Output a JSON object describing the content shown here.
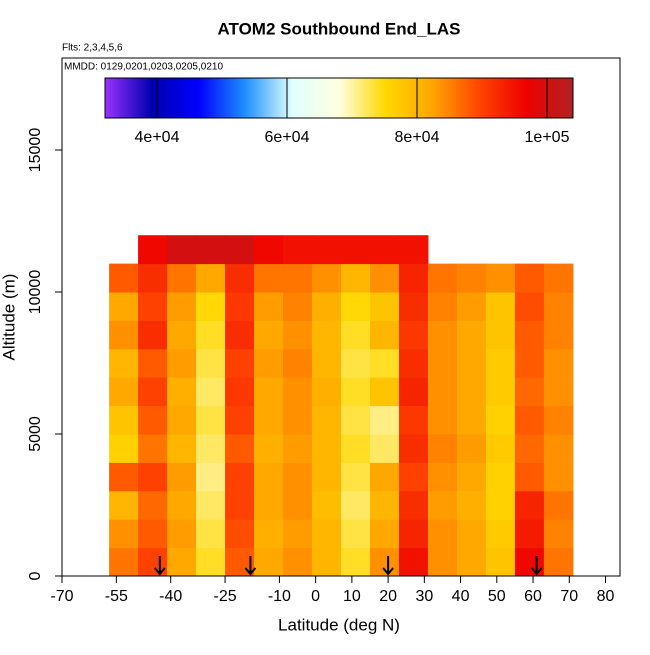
{
  "chart_data": {
    "type": "heatmap",
    "title": "ATOM2 Southbound End_LAS",
    "subtitle": "Flts: 2,3,4,5,6",
    "annotation": "MMDD: 0129,0201,0203,0205,0210",
    "x_label": "Latitude (deg N)",
    "y_label": "Altitude (m)",
    "xlim": [
      -70,
      84
    ],
    "ylim": [
      0,
      18240
    ],
    "xticks": [
      -70,
      -55,
      -40,
      -25,
      -10,
      0,
      10,
      20,
      30,
      40,
      50,
      60,
      70,
      80
    ],
    "yticks": [
      0,
      5000,
      10000,
      15000
    ],
    "x_edges": [
      -57,
      -49,
      -41,
      -33,
      -25,
      -17,
      -9,
      -1,
      7,
      15,
      23,
      31,
      39,
      47,
      55,
      63,
      71
    ],
    "y_edges": [
      0,
      1000,
      2000,
      3000,
      4000,
      5000,
      6000,
      7000,
      8000,
      9000,
      10000,
      11000,
      12000
    ],
    "z": [
      [
        86000,
        90000,
        82000,
        74000,
        88000,
        82000,
        84000,
        80000,
        74000,
        84000,
        95000,
        84000,
        82000,
        78000,
        96000,
        86000
      ],
      [
        84000,
        88000,
        83000,
        73000,
        89000,
        81000,
        83000,
        80000,
        73000,
        82000,
        93000,
        84000,
        82000,
        77000,
        94000,
        85000
      ],
      [
        80000,
        87000,
        82000,
        72000,
        90000,
        82000,
        84000,
        79000,
        72000,
        80000,
        92000,
        83000,
        81000,
        76000,
        93000,
        86000
      ],
      [
        88000,
        90000,
        83000,
        71000,
        90000,
        82000,
        84000,
        80000,
        73000,
        82000,
        90000,
        84000,
        82000,
        76000,
        88000,
        84000
      ],
      [
        76000,
        86000,
        80000,
        72000,
        88000,
        81000,
        83000,
        80000,
        74000,
        72000,
        92000,
        85000,
        83000,
        77000,
        87000,
        84000
      ],
      [
        78000,
        88000,
        82000,
        73000,
        90000,
        82000,
        84000,
        80000,
        73000,
        71000,
        91000,
        84000,
        82000,
        76000,
        88000,
        85000
      ],
      [
        82000,
        90000,
        81000,
        72000,
        91000,
        82000,
        84000,
        81000,
        74000,
        78000,
        93000,
        84000,
        82000,
        77000,
        87000,
        84000
      ],
      [
        80000,
        88000,
        83000,
        73000,
        90000,
        83000,
        85000,
        80000,
        73000,
        74000,
        92000,
        84000,
        82000,
        77000,
        88000,
        84000
      ],
      [
        84000,
        92000,
        82000,
        74000,
        92000,
        82000,
        84000,
        80000,
        74000,
        80000,
        91000,
        84000,
        82000,
        78000,
        88000,
        85000
      ],
      [
        82000,
        90000,
        83000,
        75000,
        91000,
        83000,
        85000,
        81000,
        75000,
        78000,
        92000,
        85000,
        83000,
        78000,
        89000,
        85000
      ],
      [
        88000,
        92000,
        86000,
        82000,
        92000,
        86000,
        86000,
        84000,
        80000,
        84000,
        93000,
        86000,
        85000,
        84000,
        88000,
        86000
      ],
      [
        null,
        96000,
        100000,
        100000,
        100000,
        96000,
        95000,
        95000,
        95000,
        95000,
        95000,
        null,
        null,
        null,
        null,
        null
      ]
    ],
    "clim": [
      32000,
      104000
    ],
    "colors": [
      "#9932ff",
      "#0000b0",
      "#0000ff",
      "#1e90ff",
      "#e0ffff",
      "#ffffe0",
      "#ffd700",
      "#ffa500",
      "#ff4500",
      "#ee0000",
      "#b22222"
    ],
    "colorbar_ticks": [
      {
        "value": 40000,
        "label": "4e+04"
      },
      {
        "value": 60000,
        "label": "6e+04"
      },
      {
        "value": 80000,
        "label": "8e+04"
      },
      {
        "value": 100000,
        "label": "1e+05"
      }
    ],
    "arrows_x": [
      -43,
      -18,
      20,
      61
    ]
  }
}
